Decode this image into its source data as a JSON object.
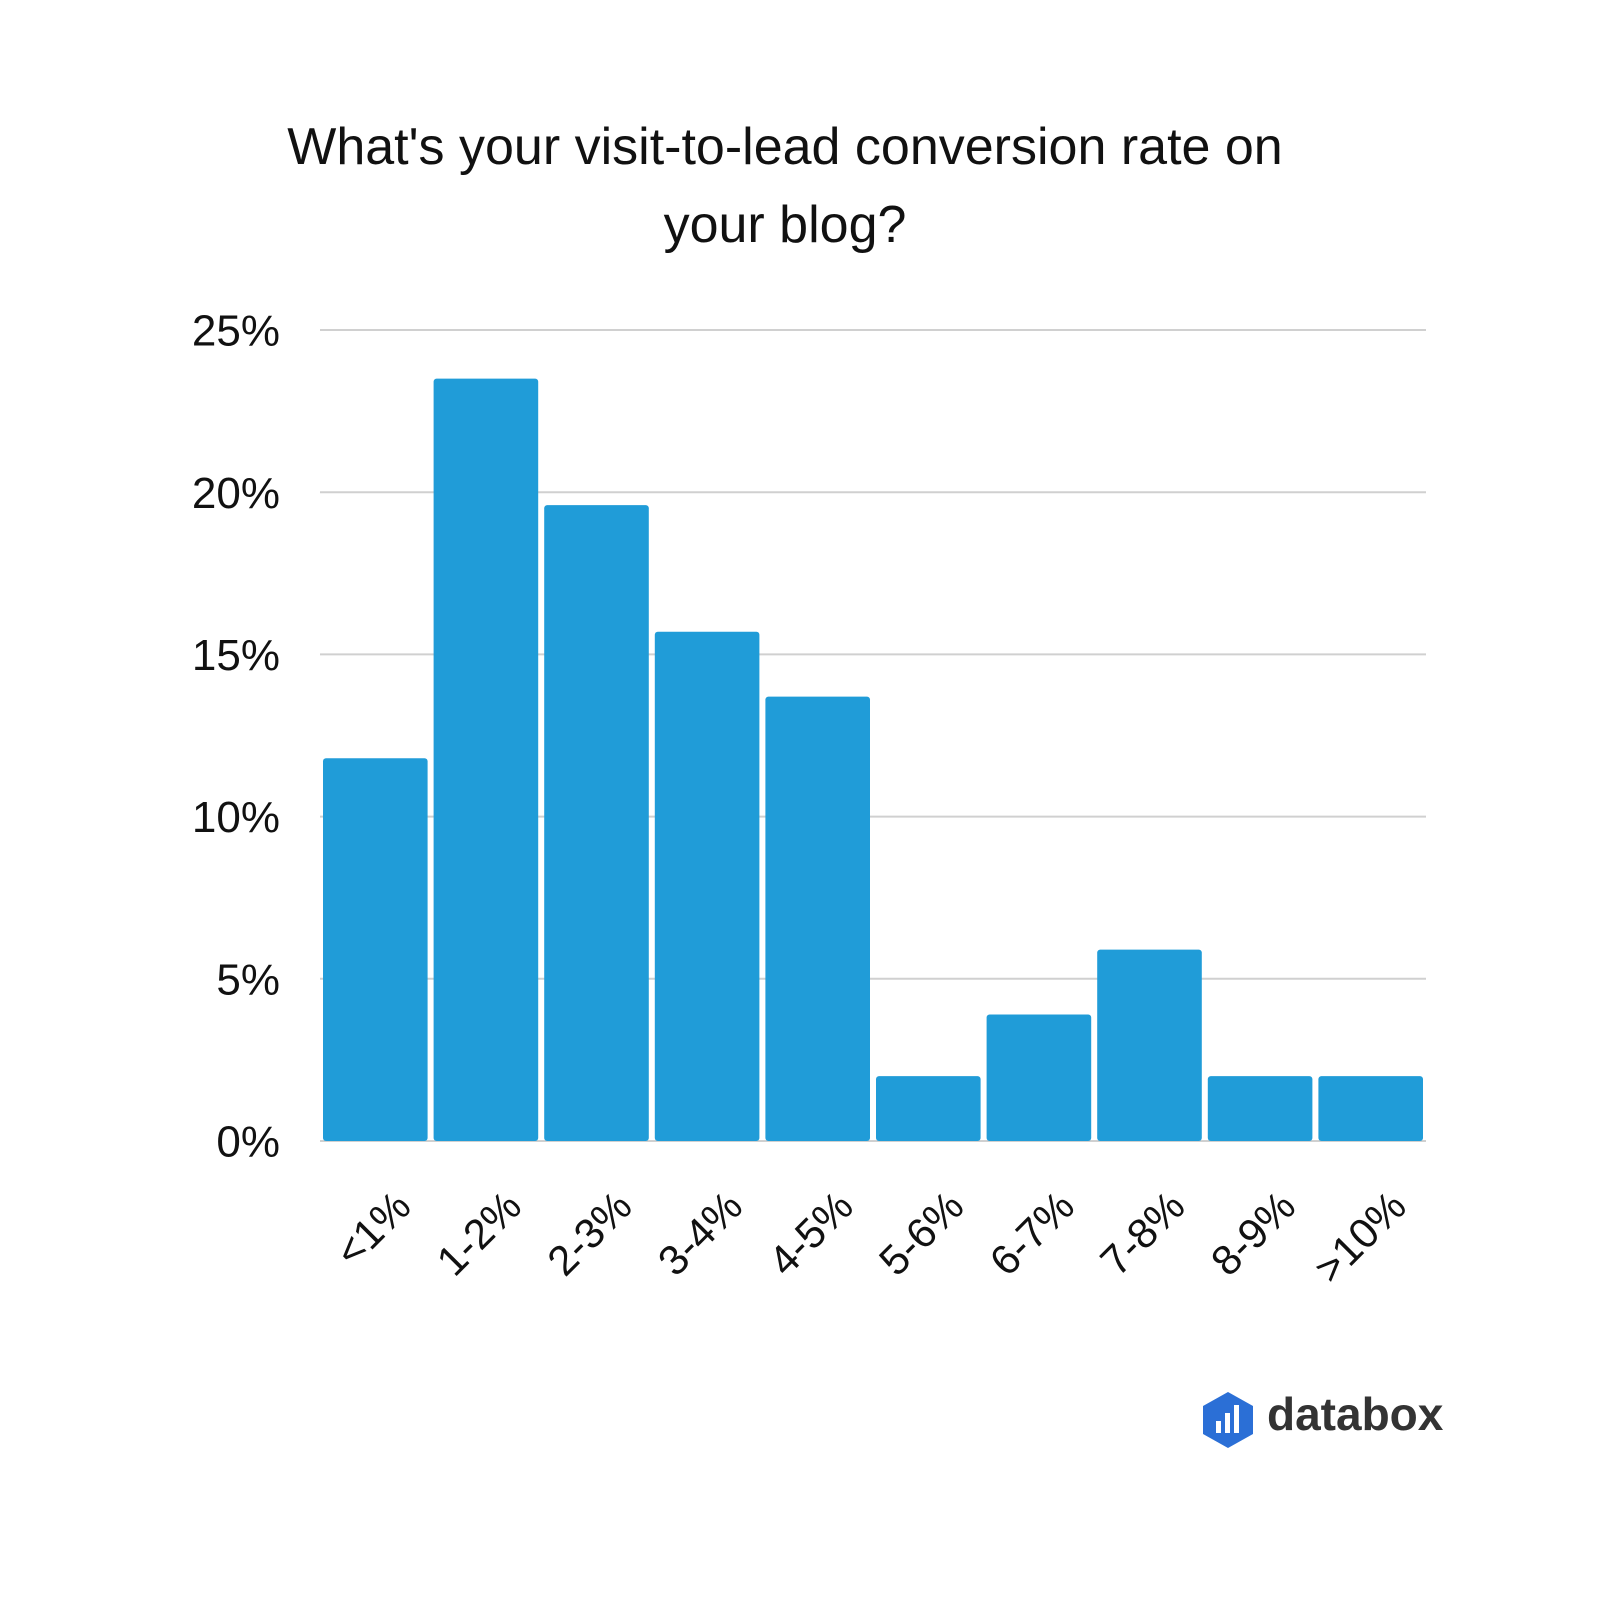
{
  "chart_data": {
    "type": "bar",
    "title": "What's your visit-to-lead conversion rate on your blog?",
    "categories": [
      "<1%",
      "1-2%",
      "2-3%",
      "3-4%",
      "4-5%",
      "5-6%",
      "6-7%",
      "7-8%",
      "8-9%",
      ">10%"
    ],
    "values": [
      11.8,
      23.5,
      19.6,
      15.7,
      13.7,
      2.0,
      3.9,
      5.9,
      2.0,
      2.0
    ],
    "color": "#209cd8",
    "ylim": [
      0,
      25
    ],
    "yticks": [
      {
        "value": 0,
        "label": "0%"
      },
      {
        "value": 5,
        "label": "5%"
      },
      {
        "value": 10,
        "label": "10%"
      },
      {
        "value": 15,
        "label": "15%"
      },
      {
        "value": 20,
        "label": "20%"
      },
      {
        "value": 25,
        "label": "25%"
      }
    ],
    "grid": true,
    "brand": "databox"
  }
}
